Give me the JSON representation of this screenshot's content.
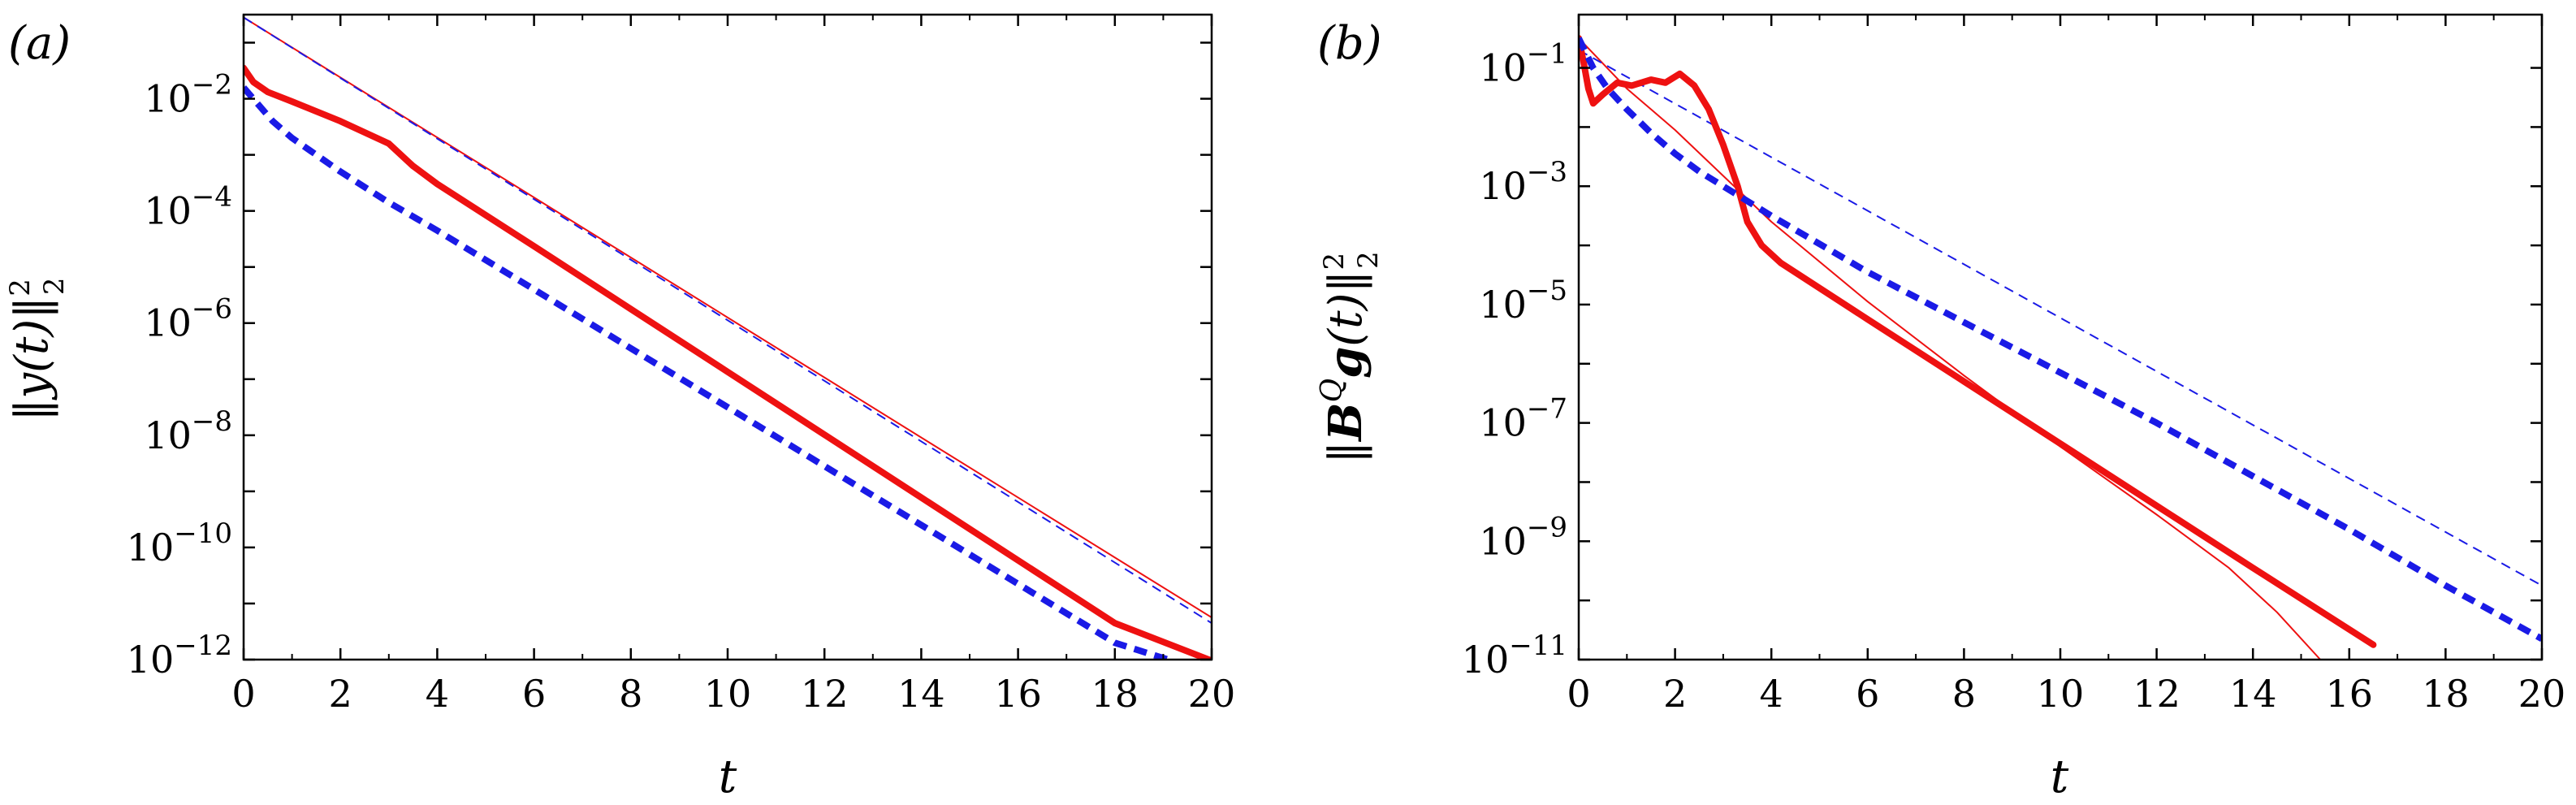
{
  "figure": {
    "background": "#ffffff",
    "colors": {
      "red": "#ee1111",
      "blue": "#1a1ae6",
      "axis": "#000000"
    }
  },
  "chart_data": [
    {
      "type": "line",
      "panel_label": "(a)",
      "title": "",
      "xlabel": "t",
      "ylabel": "‖y(t)‖₂²",
      "ylabel_parts": {
        "open": "‖",
        "core": "y(t)",
        "close": "‖",
        "sup": "2",
        "sub": "2"
      },
      "xlim": [
        0,
        20
      ],
      "ylim_log10": [
        -12,
        -0.5
      ],
      "yscale": "log",
      "xticks": [
        "0",
        "2",
        "4",
        "6",
        "8",
        "10",
        "12",
        "14",
        "16",
        "18",
        "20"
      ],
      "yticks": [
        {
          "value_log10": -2,
          "base": "10",
          "exp": "−2"
        },
        {
          "value_log10": -4,
          "base": "10",
          "exp": "−4"
        },
        {
          "value_log10": -6,
          "base": "10",
          "exp": "−6"
        },
        {
          "value_log10": -8,
          "base": "10",
          "exp": "−8"
        },
        {
          "value_log10": -10,
          "base": "10",
          "exp": "−10"
        },
        {
          "value_log10": -12,
          "base": "10",
          "exp": "−12"
        }
      ],
      "series": [
        {
          "name": "red thick solid",
          "color": "#ee1111",
          "style": "solid",
          "width": "thick",
          "x": [
            0,
            0.2,
            0.5,
            1,
            2,
            3,
            3.5,
            4,
            6,
            8,
            10,
            12,
            14,
            16,
            18,
            20
          ],
          "log10_y": [
            -1.45,
            -1.7,
            -1.88,
            -2.05,
            -2.4,
            -2.8,
            -3.2,
            -3.52,
            -4.63,
            -5.75,
            -6.87,
            -7.99,
            -9.11,
            -10.23,
            -11.35,
            -12.02
          ]
        },
        {
          "name": "blue thick dashed",
          "color": "#1a1ae6",
          "style": "dashed",
          "width": "thick",
          "x": [
            0,
            0.3,
            0.6,
            1,
            2,
            3,
            4,
            6,
            8,
            10,
            12,
            14,
            16,
            18,
            19.1
          ],
          "log10_y": [
            -1.8,
            -2.1,
            -2.4,
            -2.7,
            -3.3,
            -3.85,
            -4.35,
            -5.4,
            -6.45,
            -7.5,
            -8.55,
            -9.6,
            -10.65,
            -11.7,
            -12.0
          ]
        },
        {
          "name": "red thin solid",
          "color": "#ee1111",
          "style": "solid",
          "width": "thin",
          "x": [
            0,
            20
          ],
          "log10_y": [
            -0.55,
            -11.25
          ]
        },
        {
          "name": "blue thin dashed",
          "color": "#1a1ae6",
          "style": "dashed",
          "width": "thin",
          "x": [
            0,
            20
          ],
          "log10_y": [
            -0.55,
            -11.35
          ]
        }
      ]
    },
    {
      "type": "line",
      "panel_label": "(b)",
      "title": "",
      "xlabel": "t",
      "ylabel": "‖B^Q g(t)‖₂²",
      "ylabel_parts": {
        "open": "‖",
        "bold": "B",
        "supQ": "Q",
        "bold2": "g",
        "core": "(t)",
        "close": "‖",
        "sup": "2",
        "sub": "2"
      },
      "xlim": [
        0,
        20
      ],
      "ylim_log10": [
        -11,
        -0.1
      ],
      "yscale": "log",
      "xticks": [
        "0",
        "2",
        "4",
        "6",
        "8",
        "10",
        "12",
        "14",
        "16",
        "18",
        "20"
      ],
      "yticks": [
        {
          "value_log10": -1,
          "base": "10",
          "exp": "−1"
        },
        {
          "value_log10": -3,
          "base": "10",
          "exp": "−3"
        },
        {
          "value_log10": -5,
          "base": "10",
          "exp": "−5"
        },
        {
          "value_log10": -7,
          "base": "10",
          "exp": "−7"
        },
        {
          "value_log10": -9,
          "base": "10",
          "exp": "−9"
        },
        {
          "value_log10": -11,
          "base": "10",
          "exp": "−11"
        }
      ],
      "series": [
        {
          "name": "red thick solid",
          "color": "#ee1111",
          "style": "solid",
          "width": "thick",
          "x": [
            0,
            0.1,
            0.2,
            0.3,
            0.5,
            0.8,
            1.1,
            1.5,
            1.8,
            2.1,
            2.4,
            2.7,
            3.0,
            3.3,
            3.5,
            3.8,
            4.2,
            6,
            8,
            10,
            12,
            14,
            16.5
          ],
          "log10_y": [
            -0.5,
            -0.9,
            -1.35,
            -1.6,
            -1.45,
            -1.25,
            -1.3,
            -1.2,
            -1.25,
            -1.1,
            -1.3,
            -1.7,
            -2.3,
            -3.0,
            -3.6,
            -4.0,
            -4.3,
            -5.25,
            -6.3,
            -7.35,
            -8.4,
            -9.45,
            -10.75
          ]
        },
        {
          "name": "blue thick dashed",
          "color": "#1a1ae6",
          "style": "dashed",
          "width": "thick",
          "x": [
            0,
            0.3,
            0.6,
            1,
            1.5,
            2,
            2.5,
            3,
            3.5,
            4,
            6,
            8,
            10,
            12,
            14,
            16,
            18,
            20
          ],
          "log10_y": [
            -0.5,
            -1.0,
            -1.35,
            -1.7,
            -2.1,
            -2.45,
            -2.75,
            -3.0,
            -3.25,
            -3.5,
            -4.45,
            -5.3,
            -6.15,
            -7.0,
            -7.9,
            -8.8,
            -9.75,
            -10.65
          ]
        },
        {
          "name": "red thin solid",
          "color": "#ee1111",
          "style": "solid",
          "width": "thin",
          "x": [
            0,
            1,
            2,
            4,
            6,
            8,
            10,
            12,
            13.5,
            14.5,
            15.4
          ],
          "log10_y": [
            -0.5,
            -1.35,
            -2.05,
            -3.6,
            -4.95,
            -6.2,
            -7.4,
            -8.55,
            -9.45,
            -10.2,
            -11.0
          ]
        },
        {
          "name": "blue thin dashed",
          "color": "#1a1ae6",
          "style": "dashed",
          "width": "thin",
          "x": [
            0,
            20
          ],
          "log10_y": [
            -0.7,
            -9.75
          ]
        }
      ]
    }
  ]
}
